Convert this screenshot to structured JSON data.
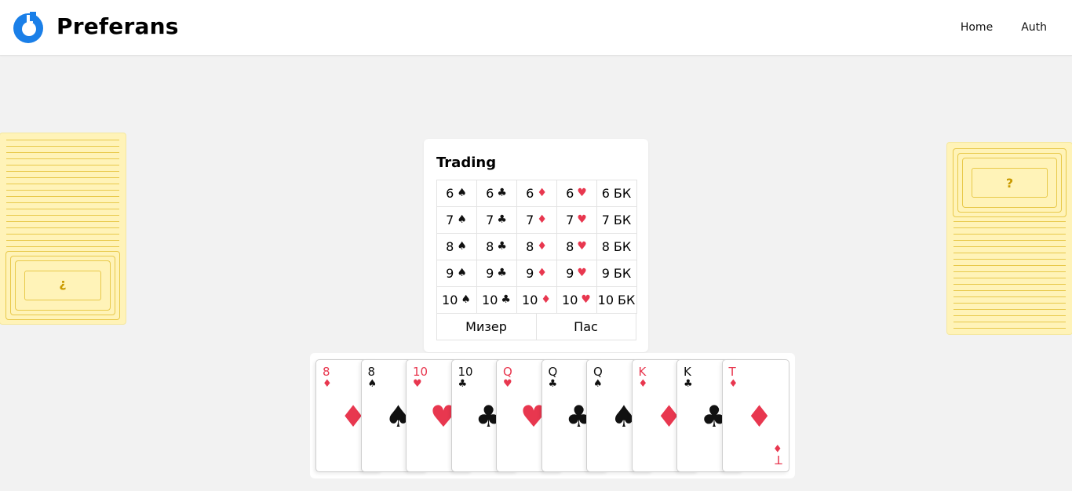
{
  "header": {
    "brand": "Preferans",
    "nav": [
      {
        "label": "Home"
      },
      {
        "label": "Auth"
      }
    ]
  },
  "colors": {
    "accent": "#1a7fe8",
    "red_suit": "#e8374f",
    "deck_back": "#fff3b8",
    "deck_line": "#e8c94a"
  },
  "opponents": {
    "left": {
      "face_symbol": "?"
    },
    "right": {
      "face_symbol": "?"
    }
  },
  "trading": {
    "title": "Trading",
    "rows": [
      [
        {
          "num": "6",
          "suit": "♠",
          "color": "black"
        },
        {
          "num": "6",
          "suit": "♣",
          "color": "black"
        },
        {
          "num": "6",
          "suit": "♦",
          "color": "red"
        },
        {
          "num": "6",
          "suit": "♥",
          "color": "red"
        },
        {
          "num": "6",
          "suit": "БК",
          "color": "text"
        }
      ],
      [
        {
          "num": "7",
          "suit": "♠",
          "color": "black"
        },
        {
          "num": "7",
          "suit": "♣",
          "color": "black"
        },
        {
          "num": "7",
          "suit": "♦",
          "color": "red"
        },
        {
          "num": "7",
          "suit": "♥",
          "color": "red"
        },
        {
          "num": "7",
          "suit": "БК",
          "color": "text"
        }
      ],
      [
        {
          "num": "8",
          "suit": "♠",
          "color": "black"
        },
        {
          "num": "8",
          "suit": "♣",
          "color": "black"
        },
        {
          "num": "8",
          "suit": "♦",
          "color": "red"
        },
        {
          "num": "8",
          "suit": "♥",
          "color": "red"
        },
        {
          "num": "8",
          "suit": "БК",
          "color": "text"
        }
      ],
      [
        {
          "num": "9",
          "suit": "♠",
          "color": "black"
        },
        {
          "num": "9",
          "suit": "♣",
          "color": "black"
        },
        {
          "num": "9",
          "suit": "♦",
          "color": "red"
        },
        {
          "num": "9",
          "suit": "♥",
          "color": "red"
        },
        {
          "num": "9",
          "suit": "БК",
          "color": "text"
        }
      ],
      [
        {
          "num": "10",
          "suit": "♠",
          "color": "black"
        },
        {
          "num": "10",
          "suit": "♣",
          "color": "black"
        },
        {
          "num": "10",
          "suit": "♦",
          "color": "red"
        },
        {
          "num": "10",
          "suit": "♥",
          "color": "red"
        },
        {
          "num": "10",
          "suit": "БК",
          "color": "text"
        }
      ]
    ],
    "actions": [
      {
        "label": "Мизер"
      },
      {
        "label": "Пас"
      }
    ]
  },
  "hand": [
    {
      "rank": "8",
      "suit": "♦",
      "color": "red"
    },
    {
      "rank": "8",
      "suit": "♠",
      "color": "black"
    },
    {
      "rank": "10",
      "suit": "♥",
      "color": "red"
    },
    {
      "rank": "10",
      "suit": "♣",
      "color": "black"
    },
    {
      "rank": "Q",
      "suit": "♥",
      "color": "red"
    },
    {
      "rank": "Q",
      "suit": "♣",
      "color": "black"
    },
    {
      "rank": "Q",
      "suit": "♠",
      "color": "black"
    },
    {
      "rank": "K",
      "suit": "♦",
      "color": "red"
    },
    {
      "rank": "K",
      "suit": "♣",
      "color": "black"
    },
    {
      "rank": "T",
      "suit": "♦",
      "color": "red"
    }
  ]
}
